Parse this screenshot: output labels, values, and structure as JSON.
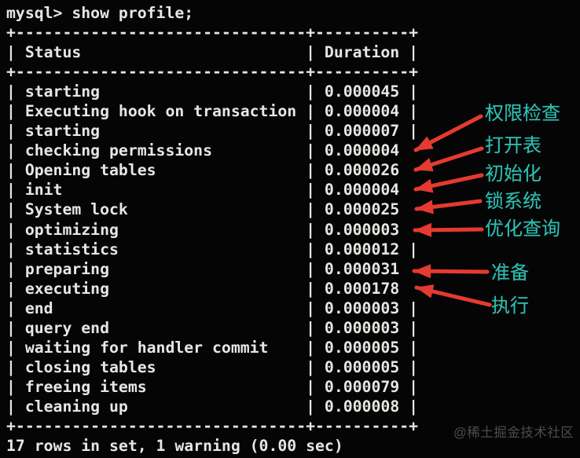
{
  "colors": {
    "background": "#050505",
    "terminal_text": "#e8e6e2",
    "annotation_teal": "#2fbfb2",
    "arrow_red": "#e53a2f",
    "watermark_gray": "#4d4d4d"
  },
  "terminal": {
    "prompt_line": "mysql> show profile;",
    "table": {
      "columns": [
        "Status",
        "Duration"
      ],
      "rows": [
        {
          "status": "starting",
          "duration": "0.000045",
          "arrow": false
        },
        {
          "status": "Executing hook on transaction",
          "duration": "0.000004",
          "arrow": false
        },
        {
          "status": "starting",
          "duration": "0.000007",
          "arrow": false
        },
        {
          "status": "checking permissions",
          "duration": "0.000004",
          "arrow": true
        },
        {
          "status": "Opening tables",
          "duration": "0.000026",
          "arrow": true
        },
        {
          "status": "init",
          "duration": "0.000004",
          "arrow": true
        },
        {
          "status": "System lock",
          "duration": "0.000025",
          "arrow": true
        },
        {
          "status": "optimizing",
          "duration": "0.000003",
          "arrow": true
        },
        {
          "status": "statistics",
          "duration": "0.000012",
          "arrow": false
        },
        {
          "status": "preparing",
          "duration": "0.000031",
          "arrow": true
        },
        {
          "status": "executing",
          "duration": "0.000178",
          "arrow": true
        },
        {
          "status": "end",
          "duration": "0.000003",
          "arrow": false
        },
        {
          "status": "query end",
          "duration": "0.000003",
          "arrow": false
        },
        {
          "status": "waiting for handler commit",
          "duration": "0.000005",
          "arrow": false
        },
        {
          "status": "closing tables",
          "duration": "0.000005",
          "arrow": false
        },
        {
          "status": "freeing items",
          "duration": "0.000079",
          "arrow": false
        },
        {
          "status": "cleaning up",
          "duration": "0.000008",
          "arrow": false
        }
      ]
    },
    "footer": "17 rows in set, 1 warning (0.00 sec)"
  },
  "annotations": [
    {
      "label": "权限检查",
      "points_to": "checking permissions"
    },
    {
      "label": "打开表",
      "points_to": "Opening tables"
    },
    {
      "label": "初始化",
      "points_to": "init"
    },
    {
      "label": "锁系统",
      "points_to": "System lock"
    },
    {
      "label": "优化查询",
      "points_to": "optimizing"
    },
    {
      "label": "准备",
      "points_to": "preparing"
    },
    {
      "label": "执行",
      "points_to": "executing"
    }
  ],
  "watermark": "@稀土掘金技术社区"
}
